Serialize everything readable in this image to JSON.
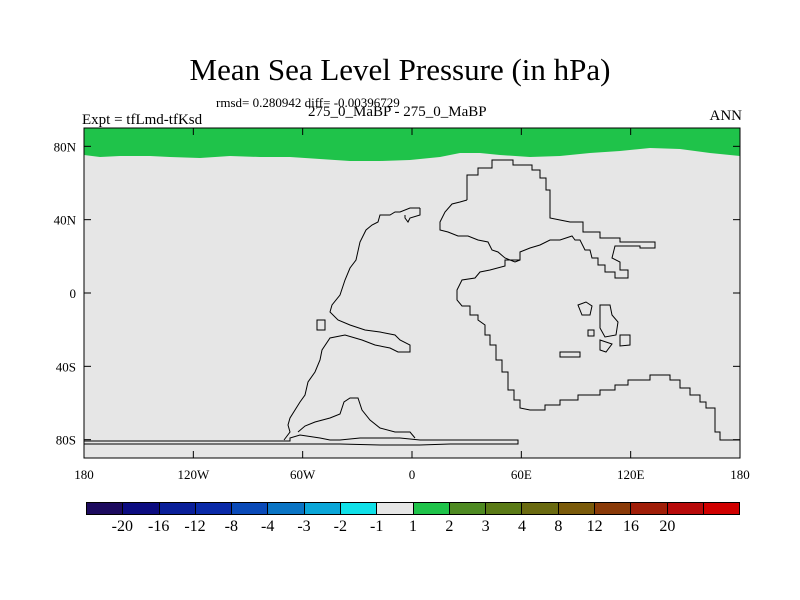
{
  "title": "Mean Sea Level Pressure (in hPa)",
  "stats": "rmsd= 0.280942 diff= -0.00396729",
  "expt": "Expt = tfLmd-tfKsd",
  "center_label": "275_0_MaBP - 275_0_MaBP",
  "season": "ANN",
  "colors": {
    "background_field": "#e6e6e6",
    "north_band": "#1fc34a",
    "coast": "#000000"
  },
  "map": {
    "lon_range": [
      -180,
      180
    ],
    "lat_range": [
      -90,
      90
    ],
    "lat_ticks": [
      {
        "value": 80,
        "label": "80N"
      },
      {
        "value": 40,
        "label": "40N"
      },
      {
        "value": 0,
        "label": "0"
      },
      {
        "value": -40,
        "label": "40S"
      },
      {
        "value": -80,
        "label": "80S"
      }
    ],
    "lon_ticks": [
      {
        "value": -180,
        "label": "180"
      },
      {
        "value": -120,
        "label": "120W"
      },
      {
        "value": -60,
        "label": "60W"
      },
      {
        "value": 0,
        "label": "0"
      },
      {
        "value": 60,
        "label": "60E"
      },
      {
        "value": 120,
        "label": "120E"
      },
      {
        "value": 180,
        "label": "180"
      }
    ],
    "north_band_bin": "1 to 2"
  },
  "colorbar": {
    "colors": [
      "#1c0a5e",
      "#0c0c80",
      "#0a1f99",
      "#0a2aa8",
      "#0a4ab8",
      "#0a74c4",
      "#0aa6d8",
      "#10e0e8",
      "#e6e6e6",
      "#1fc34a",
      "#4e8a22",
      "#5a7a16",
      "#6a6a10",
      "#7a5a0a",
      "#8a3a08",
      "#a01e08",
      "#b80a0a",
      "#d00000"
    ],
    "labels": [
      "-20",
      "-16",
      "-12",
      "-8",
      "-4",
      "-3",
      "-2",
      "-1",
      "1",
      "2",
      "3",
      "4",
      "8",
      "12",
      "16",
      "20"
    ]
  }
}
